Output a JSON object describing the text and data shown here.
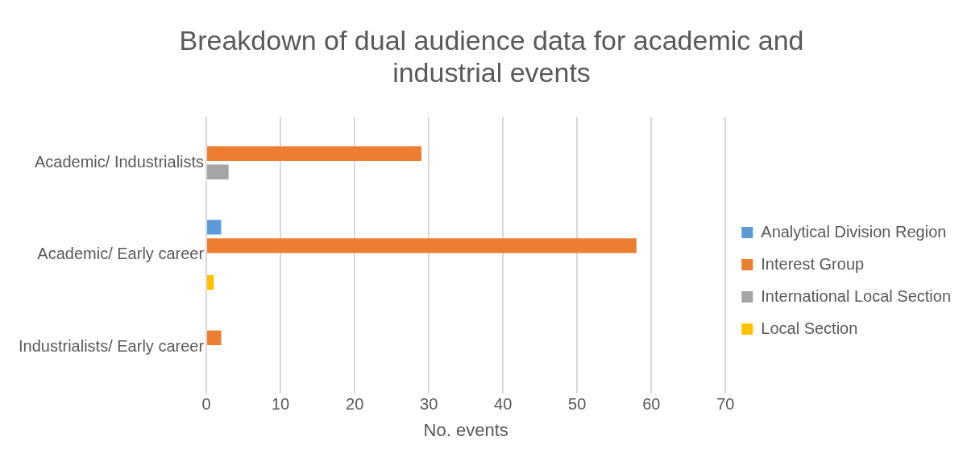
{
  "chart_data": {
    "type": "bar",
    "orientation": "horizontal",
    "title": "Breakdown of dual audience data for academic and industrial events",
    "xlabel": "No. events",
    "categories": [
      "Academic/ Industrialists",
      "Academic/ Early career",
      "Industrialists/ Early career"
    ],
    "series": [
      {
        "name": "Analytical Division Region",
        "color": "#5b9bd5",
        "values": [
          0,
          2,
          0
        ]
      },
      {
        "name": "Interest Group",
        "color": "#ed7d31",
        "values": [
          29,
          58,
          2
        ]
      },
      {
        "name": "International Local Section",
        "color": "#a5a5a5",
        "values": [
          3,
          0,
          0
        ]
      },
      {
        "name": "Local Section",
        "color": "#ffc000",
        "values": [
          0,
          1,
          0
        ]
      }
    ],
    "xlim": [
      0,
      70
    ],
    "xticks": [
      0,
      10,
      20,
      30,
      40,
      50,
      60,
      70
    ],
    "grid": "x",
    "legend": "right"
  }
}
